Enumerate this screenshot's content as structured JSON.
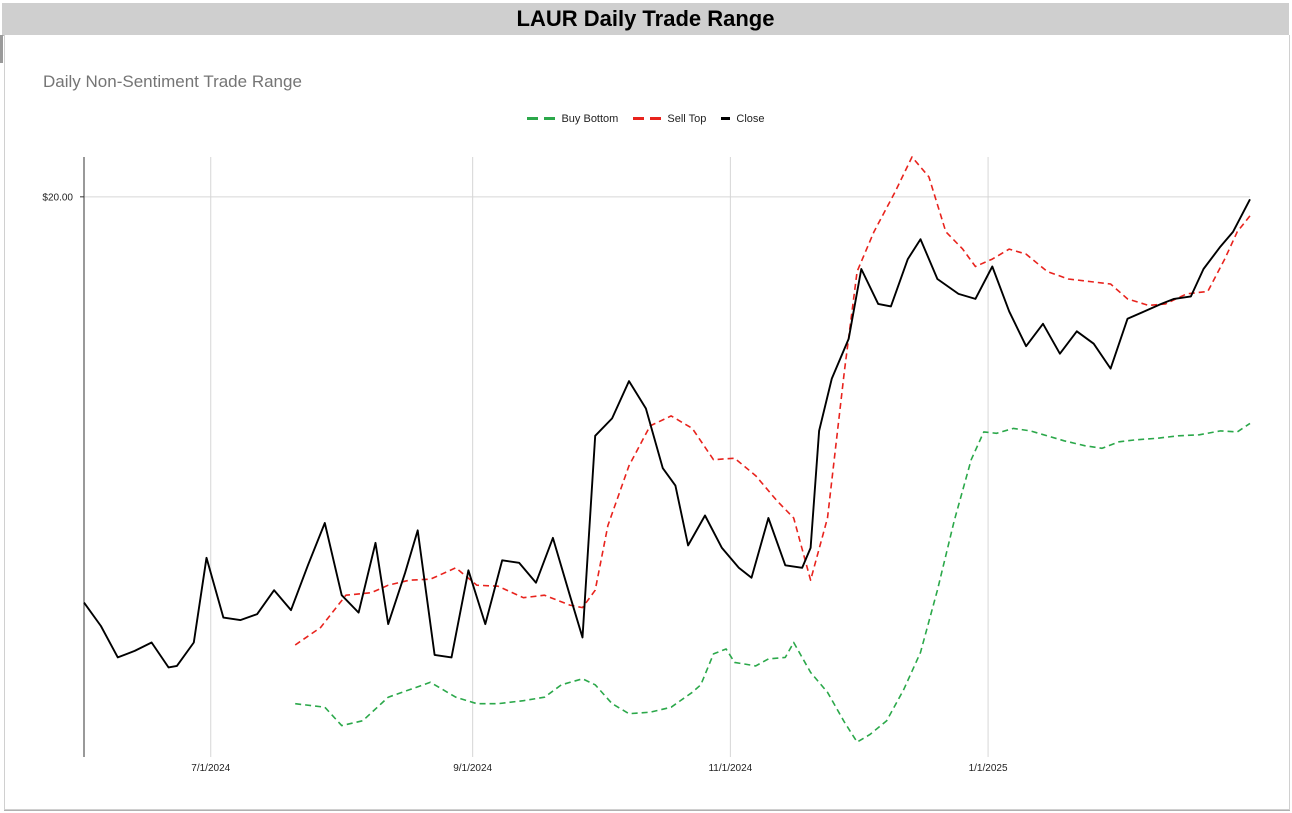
{
  "window": {
    "title": "LAUR Daily Trade Range"
  },
  "chart_data": {
    "type": "line",
    "title": "LAUR Daily Trade Range",
    "subtitle": "Daily Non-Sentiment Trade Range",
    "xlabel": "",
    "ylabel": "",
    "legend_position": "top-center",
    "x_range": [
      "2024-06-01",
      "2025-03-04"
    ],
    "ylim": [
      8.75,
      20.8
    ],
    "y_ticks": [
      {
        "value": 20.0,
        "label": "$20.00"
      }
    ],
    "x_ticks": [
      {
        "date": "2024-07-01",
        "label": "7/1/2024"
      },
      {
        "date": "2024-09-01",
        "label": "9/1/2024"
      },
      {
        "date": "2024-11-01",
        "label": "11/1/2024"
      },
      {
        "date": "2025-01-01",
        "label": "1/1/2025"
      }
    ],
    "series": [
      {
        "name": "Buy Bottom",
        "color": "#2ba84a",
        "style": "dashed",
        "points": [
          [
            "2024-07-21",
            9.82
          ],
          [
            "2024-07-28",
            9.75
          ],
          [
            "2024-08-01",
            9.38
          ],
          [
            "2024-08-06",
            9.48
          ],
          [
            "2024-08-12",
            9.95
          ],
          [
            "2024-08-17",
            10.1
          ],
          [
            "2024-08-22",
            10.25
          ],
          [
            "2024-08-28",
            9.95
          ],
          [
            "2024-09-02",
            9.82
          ],
          [
            "2024-09-07",
            9.82
          ],
          [
            "2024-09-13",
            9.88
          ],
          [
            "2024-09-18",
            9.95
          ],
          [
            "2024-09-22",
            10.2
          ],
          [
            "2024-09-27",
            10.32
          ],
          [
            "2024-09-30",
            10.2
          ],
          [
            "2024-10-04",
            9.82
          ],
          [
            "2024-10-08",
            9.62
          ],
          [
            "2024-10-13",
            9.65
          ],
          [
            "2024-10-18",
            9.75
          ],
          [
            "2024-10-23",
            10.05
          ],
          [
            "2024-10-25",
            10.2
          ],
          [
            "2024-10-28",
            10.82
          ],
          [
            "2024-10-31",
            10.92
          ],
          [
            "2024-11-02",
            10.65
          ],
          [
            "2024-11-07",
            10.58
          ],
          [
            "2024-11-10",
            10.72
          ],
          [
            "2024-11-14",
            10.75
          ],
          [
            "2024-11-16",
            11.05
          ],
          [
            "2024-11-20",
            10.45
          ],
          [
            "2024-11-24",
            10.05
          ],
          [
            "2024-11-28",
            9.45
          ],
          [
            "2024-12-01",
            9.05
          ],
          [
            "2024-12-04",
            9.2
          ],
          [
            "2024-12-08",
            9.48
          ],
          [
            "2024-12-12",
            10.1
          ],
          [
            "2024-12-16",
            10.85
          ],
          [
            "2024-12-20",
            12.1
          ],
          [
            "2024-12-24",
            13.5
          ],
          [
            "2024-12-28",
            14.72
          ],
          [
            "2024-12-31",
            15.28
          ],
          [
            "2025-01-03",
            15.25
          ],
          [
            "2025-01-07",
            15.35
          ],
          [
            "2025-01-11",
            15.3
          ],
          [
            "2025-01-15",
            15.2
          ],
          [
            "2025-01-19",
            15.1
          ],
          [
            "2025-01-24",
            15.0
          ],
          [
            "2025-01-28",
            14.95
          ],
          [
            "2025-02-01",
            15.08
          ],
          [
            "2025-02-05",
            15.12
          ],
          [
            "2025-02-10",
            15.15
          ],
          [
            "2025-02-15",
            15.2
          ],
          [
            "2025-02-20",
            15.22
          ],
          [
            "2025-02-25",
            15.3
          ],
          [
            "2025-03-01",
            15.28
          ],
          [
            "2025-03-04",
            15.45
          ]
        ]
      },
      {
        "name": "Sell Top",
        "color": "#e8231d",
        "style": "dashed",
        "points": [
          [
            "2024-07-21",
            11.0
          ],
          [
            "2024-07-27",
            11.35
          ],
          [
            "2024-08-02",
            12.0
          ],
          [
            "2024-08-08",
            12.05
          ],
          [
            "2024-08-12",
            12.2
          ],
          [
            "2024-08-17",
            12.3
          ],
          [
            "2024-08-22",
            12.32
          ],
          [
            "2024-08-28",
            12.55
          ],
          [
            "2024-09-02",
            12.2
          ],
          [
            "2024-09-07",
            12.18
          ],
          [
            "2024-09-13",
            11.95
          ],
          [
            "2024-09-18",
            12.0
          ],
          [
            "2024-09-24",
            11.8
          ],
          [
            "2024-09-27",
            11.75
          ],
          [
            "2024-09-30",
            12.1
          ],
          [
            "2024-10-03",
            13.4
          ],
          [
            "2024-10-08",
            14.6
          ],
          [
            "2024-10-13",
            15.4
          ],
          [
            "2024-10-18",
            15.6
          ],
          [
            "2024-10-23",
            15.35
          ],
          [
            "2024-10-28",
            14.72
          ],
          [
            "2024-11-02",
            14.75
          ],
          [
            "2024-11-07",
            14.4
          ],
          [
            "2024-11-12",
            13.9
          ],
          [
            "2024-11-16",
            13.55
          ],
          [
            "2024-11-20",
            12.3
          ],
          [
            "2024-11-24",
            13.55
          ],
          [
            "2024-11-28",
            16.5
          ],
          [
            "2024-12-01",
            18.5
          ],
          [
            "2024-12-05",
            19.3
          ],
          [
            "2024-12-10",
            20.1
          ],
          [
            "2024-12-14",
            20.8
          ],
          [
            "2024-12-18",
            20.4
          ],
          [
            "2024-12-22",
            19.3
          ],
          [
            "2024-12-26",
            18.95
          ],
          [
            "2024-12-29",
            18.6
          ],
          [
            "2025-01-02",
            18.75
          ],
          [
            "2025-01-06",
            18.95
          ],
          [
            "2025-01-10",
            18.85
          ],
          [
            "2025-01-15",
            18.5
          ],
          [
            "2025-01-20",
            18.35
          ],
          [
            "2025-01-25",
            18.3
          ],
          [
            "2025-01-30",
            18.25
          ],
          [
            "2025-02-03",
            17.95
          ],
          [
            "2025-02-08",
            17.82
          ],
          [
            "2025-02-12",
            17.85
          ],
          [
            "2025-02-17",
            18.05
          ],
          [
            "2025-02-22",
            18.1
          ],
          [
            "2025-02-26",
            18.75
          ],
          [
            "2025-03-01",
            19.3
          ],
          [
            "2025-03-04",
            19.62
          ]
        ]
      },
      {
        "name": "Close",
        "color": "#000000",
        "style": "solid",
        "points": [
          [
            "2024-06-01",
            11.85
          ],
          [
            "2024-06-05",
            11.38
          ],
          [
            "2024-06-09",
            10.75
          ],
          [
            "2024-06-13",
            10.88
          ],
          [
            "2024-06-17",
            11.05
          ],
          [
            "2024-06-21",
            10.55
          ],
          [
            "2024-06-23",
            10.58
          ],
          [
            "2024-06-27",
            11.05
          ],
          [
            "2024-06-30",
            12.75
          ],
          [
            "2024-07-04",
            11.55
          ],
          [
            "2024-07-08",
            11.5
          ],
          [
            "2024-07-12",
            11.62
          ],
          [
            "2024-07-16",
            12.1
          ],
          [
            "2024-07-20",
            11.7
          ],
          [
            "2024-07-24",
            12.6
          ],
          [
            "2024-07-28",
            13.45
          ],
          [
            "2024-08-01",
            12.0
          ],
          [
            "2024-08-05",
            11.65
          ],
          [
            "2024-08-09",
            13.05
          ],
          [
            "2024-08-12",
            11.42
          ],
          [
            "2024-08-16",
            12.45
          ],
          [
            "2024-08-19",
            13.3
          ],
          [
            "2024-08-23",
            10.8
          ],
          [
            "2024-08-27",
            10.75
          ],
          [
            "2024-08-31",
            12.5
          ],
          [
            "2024-09-04",
            11.42
          ],
          [
            "2024-09-08",
            12.7
          ],
          [
            "2024-09-12",
            12.65
          ],
          [
            "2024-09-16",
            12.25
          ],
          [
            "2024-09-20",
            13.15
          ],
          [
            "2024-09-24",
            12.0
          ],
          [
            "2024-09-27",
            11.15
          ],
          [
            "2024-09-30",
            15.2
          ],
          [
            "2024-10-04",
            15.55
          ],
          [
            "2024-10-08",
            16.3
          ],
          [
            "2024-10-12",
            15.75
          ],
          [
            "2024-10-16",
            14.55
          ],
          [
            "2024-10-19",
            14.2
          ],
          [
            "2024-10-22",
            13.0
          ],
          [
            "2024-10-26",
            13.6
          ],
          [
            "2024-10-30",
            12.95
          ],
          [
            "2024-11-03",
            12.55
          ],
          [
            "2024-11-06",
            12.35
          ],
          [
            "2024-11-10",
            13.55
          ],
          [
            "2024-11-14",
            12.6
          ],
          [
            "2024-11-18",
            12.55
          ],
          [
            "2024-11-20",
            12.95
          ],
          [
            "2024-11-22",
            15.3
          ],
          [
            "2024-11-25",
            16.35
          ],
          [
            "2024-11-29",
            17.15
          ],
          [
            "2024-12-02",
            18.55
          ],
          [
            "2024-12-06",
            17.85
          ],
          [
            "2024-12-09",
            17.8
          ],
          [
            "2024-12-13",
            18.75
          ],
          [
            "2024-12-16",
            19.15
          ],
          [
            "2024-12-20",
            18.35
          ],
          [
            "2024-12-25",
            18.05
          ],
          [
            "2024-12-29",
            17.95
          ],
          [
            "2025-01-02",
            18.6
          ],
          [
            "2025-01-06",
            17.7
          ],
          [
            "2025-01-10",
            17.0
          ],
          [
            "2025-01-14",
            17.45
          ],
          [
            "2025-01-18",
            16.85
          ],
          [
            "2025-01-22",
            17.3
          ],
          [
            "2025-01-26",
            17.05
          ],
          [
            "2025-01-30",
            16.55
          ],
          [
            "2025-02-03",
            17.55
          ],
          [
            "2025-02-07",
            17.7
          ],
          [
            "2025-02-11",
            17.85
          ],
          [
            "2025-02-14",
            17.95
          ],
          [
            "2025-02-18",
            18.0
          ],
          [
            "2025-02-21",
            18.55
          ],
          [
            "2025-02-25",
            19.0
          ],
          [
            "2025-02-28",
            19.3
          ],
          [
            "2025-03-04",
            19.95
          ]
        ]
      }
    ]
  }
}
